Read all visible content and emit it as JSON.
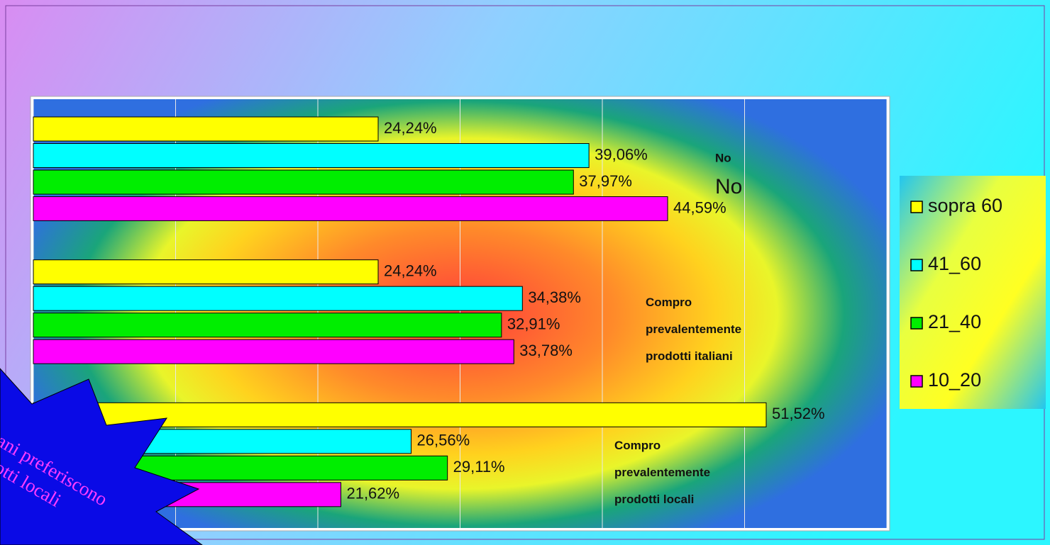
{
  "chart_data": {
    "type": "hbar",
    "categories": [
      "No",
      "Compro prevalentemente prodotti italiani",
      "Compro prevalentemente prodotti locali"
    ],
    "category_label_lines": [
      [
        "No"
      ],
      [
        "Compro",
        "prevalentemente",
        "prodotti italiani"
      ],
      [
        "Compro",
        "prevalentemente",
        "prodotti locali"
      ]
    ],
    "series": [
      {
        "name": "sopra 60",
        "color": "#ffff00",
        "values": [
          24.24,
          24.24,
          51.52
        ],
        "value_labels": [
          "24,24%",
          "24,24%",
          "51,52%"
        ]
      },
      {
        "name": "41_60",
        "color": "#00ffff",
        "values": [
          39.06,
          34.38,
          26.56
        ],
        "value_labels": [
          "39,06%",
          "34,38%",
          "26,56%"
        ]
      },
      {
        "name": "21_40",
        "color": "#00ee00",
        "values": [
          37.97,
          32.91,
          29.11
        ],
        "value_labels": [
          "37,97%",
          "32,91%",
          "29,11%"
        ]
      },
      {
        "name": "10_20",
        "color": "#ff00ff",
        "values": [
          44.59,
          33.78,
          21.62
        ],
        "value_labels": [
          "44,59%",
          "33,78%",
          "21,62%"
        ]
      }
    ],
    "xlim": [
      0,
      60
    ],
    "xticks": [
      0,
      10,
      20,
      30,
      40,
      50,
      60
    ],
    "grid": true,
    "annotation": [
      "iani preferiscono",
      "dotti locali"
    ]
  }
}
